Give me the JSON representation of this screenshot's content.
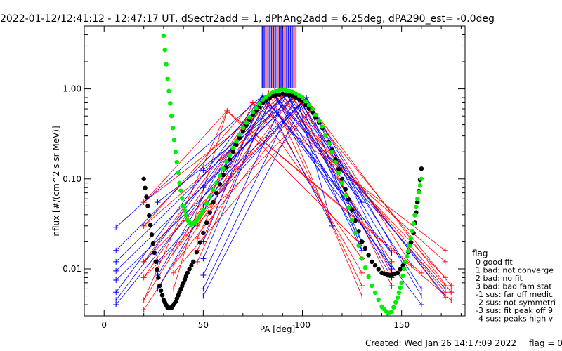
{
  "chart_data": {
    "type": "scatter",
    "title": "2022-01-12/12:41:12 - 12:47:17 UT, dSectr2add = 1, dPhAng2add = 6.25deg, dPA290_est=  -0.0deg",
    "xlabel": "PA [deg]",
    "ylabel": "nflux [#/(cm^2 s sr MeV)]",
    "xlim": [
      -10,
      182
    ],
    "ylim": [
      0.003,
      5.0
    ],
    "yscale": "log",
    "x_ticks": [
      "0",
      "50",
      "100",
      "150"
    ],
    "y_ticks": [
      "0.01",
      "0.10",
      "1.00"
    ],
    "grid": false,
    "series": [
      {
        "color": "#ff0000",
        "marker": "plus",
        "points": [
          [
            20,
            0.055
          ],
          [
            20,
            0.03
          ],
          [
            20,
            0.012
          ],
          [
            20,
            0.008
          ],
          [
            20,
            0.0045
          ],
          [
            20,
            0.0035
          ],
          [
            35,
            0.015
          ],
          [
            35,
            0.011
          ],
          [
            35,
            0.009
          ],
          [
            35,
            0.006
          ],
          [
            47,
            0.03
          ],
          [
            47,
            0.022
          ],
          [
            47,
            0.016
          ],
          [
            47,
            0.012
          ],
          [
            62,
            0.57
          ],
          [
            75,
            0.7
          ],
          [
            80,
            0.75
          ],
          [
            83,
            0.9
          ],
          [
            86,
            0.95
          ],
          [
            90,
            0.85
          ],
          [
            95,
            0.8
          ],
          [
            100,
            0.7
          ],
          [
            105,
            0.6
          ],
          [
            130,
            0.018
          ],
          [
            130,
            0.013
          ],
          [
            130,
            0.009
          ],
          [
            130,
            0.0065
          ],
          [
            130,
            0.005
          ],
          [
            145,
            0.012
          ],
          [
            145,
            0.009
          ],
          [
            145,
            0.0065
          ],
          [
            155,
            0.011
          ],
          [
            160,
            0.009
          ],
          [
            172,
            0.016
          ],
          [
            172,
            0.012
          ],
          [
            172,
            0.008
          ],
          [
            172,
            0.0065
          ],
          [
            172,
            0.0055
          ],
          [
            172,
            0.0048
          ],
          [
            175,
            0.0065
          ],
          [
            175,
            0.0055
          ],
          [
            175,
            0.0045
          ]
        ]
      },
      {
        "color": "#0000ff",
        "marker": "plus",
        "points": [
          [
            6,
            0.029
          ],
          [
            6,
            0.016
          ],
          [
            6,
            0.012
          ],
          [
            6,
            0.0095
          ],
          [
            6,
            0.0075
          ],
          [
            6,
            0.0055
          ],
          [
            6,
            0.0045
          ],
          [
            6,
            0.004
          ],
          [
            27,
            0.055
          ],
          [
            27,
            0.012
          ],
          [
            27,
            0.0085
          ],
          [
            27,
            0.006
          ],
          [
            50,
            0.125
          ],
          [
            50,
            0.08
          ],
          [
            50,
            0.05
          ],
          [
            50,
            0.02
          ],
          [
            50,
            0.013
          ],
          [
            50,
            0.0085
          ],
          [
            50,
            0.006
          ],
          [
            50,
            0.005
          ],
          [
            80,
            0.85
          ],
          [
            85,
            0.9
          ],
          [
            92,
            0.88
          ],
          [
            97,
            0.85
          ],
          [
            102,
            0.8
          ],
          [
            115,
            0.03
          ],
          [
            130,
            0.055
          ],
          [
            130,
            0.035
          ],
          [
            130,
            0.02
          ],
          [
            130,
            0.016
          ],
          [
            145,
            0.015
          ],
          [
            145,
            0.01
          ],
          [
            145,
            0.008
          ],
          [
            160,
            0.006
          ],
          [
            160,
            0.005
          ],
          [
            160,
            0.004
          ],
          [
            172,
            0.006
          ],
          [
            172,
            0.005
          ]
        ]
      },
      {
        "color": "#000000",
        "marker": "dots",
        "points": [
          [
            20,
            0.1
          ],
          [
            22,
            0.05
          ],
          [
            24,
            0.024
          ],
          [
            26,
            0.012
          ],
          [
            28,
            0.0065
          ],
          [
            30,
            0.0045
          ],
          [
            32,
            0.0037
          ],
          [
            34,
            0.0037
          ],
          [
            36,
            0.0043
          ],
          [
            38,
            0.0055
          ],
          [
            40,
            0.007
          ],
          [
            42,
            0.009
          ],
          [
            45,
            0.012
          ],
          [
            50,
            0.025
          ],
          [
            55,
            0.055
          ],
          [
            60,
            0.11
          ],
          [
            65,
            0.2
          ],
          [
            70,
            0.34
          ],
          [
            75,
            0.52
          ],
          [
            80,
            0.7
          ],
          [
            85,
            0.83
          ],
          [
            90,
            0.88
          ],
          [
            95,
            0.84
          ],
          [
            100,
            0.73
          ],
          [
            105,
            0.55
          ],
          [
            110,
            0.37
          ],
          [
            115,
            0.21
          ],
          [
            120,
            0.1
          ],
          [
            125,
            0.045
          ],
          [
            130,
            0.02
          ],
          [
            135,
            0.012
          ],
          [
            140,
            0.009
          ],
          [
            144,
            0.0085
          ],
          [
            148,
            0.009
          ],
          [
            152,
            0.012
          ],
          [
            156,
            0.025
          ],
          [
            158,
            0.055
          ],
          [
            160,
            0.13
          ]
        ]
      },
      {
        "color": "#00ee00",
        "marker": "dots",
        "points": [
          [
            30,
            3.9
          ],
          [
            32,
            1.3
          ],
          [
            34,
            0.5
          ],
          [
            36,
            0.2
          ],
          [
            38,
            0.09
          ],
          [
            40,
            0.05
          ],
          [
            42,
            0.035
          ],
          [
            44,
            0.031
          ],
          [
            46,
            0.033
          ],
          [
            48,
            0.038
          ],
          [
            50,
            0.045
          ],
          [
            55,
            0.075
          ],
          [
            60,
            0.13
          ],
          [
            65,
            0.22
          ],
          [
            70,
            0.37
          ],
          [
            75,
            0.55
          ],
          [
            80,
            0.76
          ],
          [
            85,
            0.92
          ],
          [
            90,
            0.98
          ],
          [
            95,
            0.93
          ],
          [
            100,
            0.8
          ],
          [
            105,
            0.6
          ],
          [
            110,
            0.38
          ],
          [
            115,
            0.2
          ],
          [
            120,
            0.09
          ],
          [
            125,
            0.035
          ],
          [
            130,
            0.013
          ],
          [
            135,
            0.0065
          ],
          [
            140,
            0.0038
          ],
          [
            143,
            0.0032
          ],
          [
            145,
            0.0033
          ],
          [
            148,
            0.0048
          ],
          [
            150,
            0.007
          ],
          [
            152,
            0.012
          ],
          [
            154,
            0.018
          ],
          [
            156,
            0.032
          ],
          [
            158,
            0.06
          ],
          [
            160,
            0.1
          ]
        ]
      }
    ],
    "legend": {
      "position": "right",
      "title": "flag",
      "entries": [
        "0 good fit",
        "1 bad: not converge",
        "2 bad: no fit",
        "3 bad: bad fam stat",
        "-1 sus: far off medic",
        "-2 sus: not symmetri",
        "-3 sus: fit peak off 9",
        "-4 sus: peaks high v"
      ]
    },
    "footer_left": "Created: Wed Jan 26 14:17:09 2022",
    "footer_right": "flag = 0"
  },
  "colors": {
    "red": "#ff0000",
    "blue": "#0000ff",
    "black": "#000000",
    "green": "#00ee00"
  }
}
